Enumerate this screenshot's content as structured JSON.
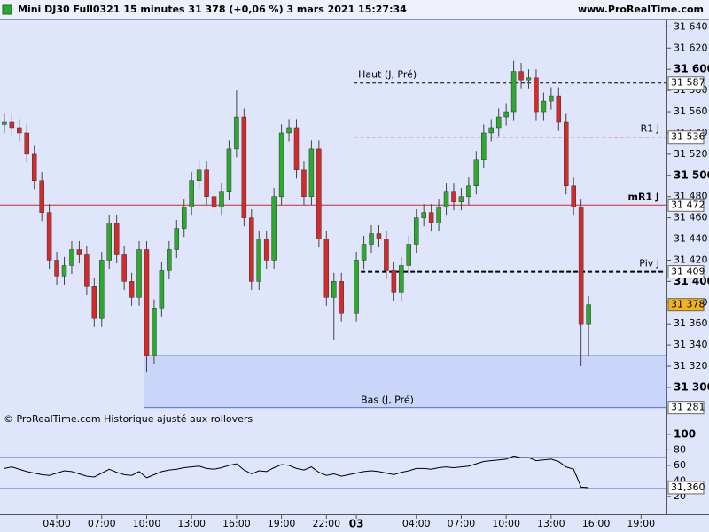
{
  "header": {
    "title": "Mini DJ30 Full0321 15 minutes 31 378 (+0,06 %) 3 mars 2021 15:27:34",
    "site": "www.ProRealTime.com"
  },
  "chart_data": [
    {
      "type": "candlestick",
      "note": "© ProRealTime.com  Historique ajusté aux rollovers",
      "x": [
        0.5,
        1,
        1.5,
        2,
        2.5,
        3,
        3.5,
        4,
        4.5,
        5,
        5.5,
        6,
        6.5,
        7,
        7.5,
        8,
        8.5,
        9,
        9.5,
        10,
        10.5,
        11,
        11.5,
        12,
        12.5,
        13,
        13.5,
        14,
        14.5,
        15,
        15.5,
        16,
        16.5,
        17,
        17.5,
        18,
        18.5,
        19,
        19.5,
        20,
        20.5,
        21,
        21.5,
        22,
        22.5,
        23,
        24,
        24.5,
        25,
        25.5,
        26,
        26.5,
        27,
        27.5,
        28,
        28.5,
        29,
        29.5,
        30,
        30.5,
        31,
        31.5,
        32,
        32.5,
        33,
        33.5,
        34,
        34.5,
        35,
        35.5,
        36,
        36.5,
        37,
        37.5,
        38,
        38.5,
        39,
        39.5
      ],
      "open": [
        31548,
        31550,
        31545,
        31540,
        31520,
        31495,
        31465,
        31420,
        31405,
        31415,
        31430,
        31425,
        31395,
        31365,
        31420,
        31455,
        31425,
        31400,
        31385,
        31430,
        31330,
        31375,
        31410,
        31430,
        31450,
        31470,
        31495,
        31505,
        31480,
        31470,
        31485,
        31525,
        31555,
        31460,
        31400,
        31440,
        31420,
        31480,
        31540,
        31545,
        31505,
        31480,
        31525,
        31440,
        31385,
        31400,
        31370,
        31420,
        31435,
        31445,
        31440,
        31410,
        31390,
        31415,
        31435,
        31460,
        31465,
        31455,
        31470,
        31485,
        31475,
        31480,
        31490,
        31515,
        31540,
        31545,
        31555,
        31560,
        31598,
        31590,
        31592,
        31560,
        31570,
        31575,
        31550,
        31490,
        31470,
        31360
      ],
      "high": [
        31558,
        31558,
        31553,
        31548,
        31528,
        31503,
        31473,
        31428,
        31423,
        31438,
        31438,
        31433,
        31403,
        31428,
        31463,
        31463,
        31433,
        31408,
        31438,
        31438,
        31383,
        31418,
        31438,
        31458,
        31478,
        31503,
        31513,
        31513,
        31488,
        31493,
        31533,
        31580,
        31563,
        31468,
        31448,
        31448,
        31488,
        31548,
        31553,
        31553,
        31513,
        31533,
        31533,
        31448,
        31408,
        31408,
        31428,
        31443,
        31453,
        31453,
        31448,
        31418,
        31423,
        31443,
        31468,
        31473,
        31473,
        31478,
        31493,
        31493,
        31488,
        31498,
        31523,
        31548,
        31553,
        31563,
        31568,
        31608,
        31606,
        31600,
        31600,
        31578,
        31583,
        31583,
        31558,
        31498,
        31478,
        31386
      ],
      "low": [
        31540,
        31537,
        31532,
        31512,
        31487,
        31457,
        31412,
        31397,
        31397,
        31407,
        31417,
        31387,
        31357,
        31357,
        31412,
        31417,
        31392,
        31377,
        31377,
        31314,
        31322,
        31367,
        31402,
        31422,
        31442,
        31462,
        31487,
        31472,
        31462,
        31462,
        31477,
        31517,
        31452,
        31392,
        31392,
        31412,
        31412,
        31472,
        31532,
        31497,
        31472,
        31472,
        31432,
        31377,
        31345,
        31362,
        31362,
        31412,
        31427,
        31432,
        31402,
        31382,
        31382,
        31407,
        31427,
        31452,
        31447,
        31447,
        31462,
        31467,
        31467,
        31472,
        31482,
        31507,
        31532,
        31537,
        31547,
        31552,
        31582,
        31582,
        31552,
        31552,
        31562,
        31542,
        31482,
        31462,
        31320,
        31330
      ],
      "close": [
        31550,
        31545,
        31540,
        31520,
        31495,
        31465,
        31420,
        31405,
        31415,
        31430,
        31425,
        31395,
        31365,
        31420,
        31455,
        31425,
        31400,
        31385,
        31430,
        31330,
        31375,
        31410,
        31430,
        31450,
        31470,
        31495,
        31505,
        31480,
        31470,
        31485,
        31525,
        31555,
        31460,
        31400,
        31440,
        31420,
        31480,
        31540,
        31545,
        31505,
        31480,
        31525,
        31440,
        31385,
        31400,
        31370,
        31420,
        31435,
        31445,
        31440,
        31410,
        31390,
        31415,
        31435,
        31460,
        31465,
        31455,
        31470,
        31485,
        31475,
        31480,
        31490,
        31515,
        31540,
        31545,
        31555,
        31560,
        31598,
        31590,
        31592,
        31560,
        31570,
        31575,
        31550,
        31490,
        31470,
        31360,
        31378
      ],
      "up_color": "#2ea82e",
      "down_color": "#d42a2a",
      "xlim": [
        0.21,
        44.7
      ],
      "ylim": [
        31264,
        31647
      ],
      "yticks": [
        {
          "value": 31300,
          "label": "31 300"
        },
        {
          "value": 31320,
          "label": "31 320"
        },
        {
          "value": 31340,
          "label": "31 340"
        },
        {
          "value": 31360,
          "label": "31 360"
        },
        {
          "value": 31380,
          "label": "31 380"
        },
        {
          "value": 31400,
          "label": "31 400"
        },
        {
          "value": 31420,
          "label": "31 420"
        },
        {
          "value": 31440,
          "label": "31 440"
        },
        {
          "value": 31460,
          "label": "31 460"
        },
        {
          "value": 31480,
          "label": "31 480"
        },
        {
          "value": 31500,
          "label": "31 500"
        },
        {
          "value": 31520,
          "label": "31 520"
        },
        {
          "value": 31540,
          "label": "31 540"
        },
        {
          "value": 31560,
          "label": "31 560"
        },
        {
          "value": 31580,
          "label": "31 580"
        },
        {
          "value": 31600,
          "label": "31 600"
        },
        {
          "value": 31620,
          "label": "31 620"
        },
        {
          "value": 31640,
          "label": "31 640"
        }
      ],
      "xticks": [
        {
          "value": 4,
          "label": "04:00"
        },
        {
          "value": 7,
          "label": "07:00"
        },
        {
          "value": 10,
          "label": "10:00"
        },
        {
          "value": 13,
          "label": "13:00"
        },
        {
          "value": 16,
          "label": "16:00"
        },
        {
          "value": 19,
          "label": "19:00"
        },
        {
          "value": 22,
          "label": "22:00"
        },
        {
          "value": 24,
          "label": "03"
        },
        {
          "value": 28,
          "label": "04:00"
        },
        {
          "value": 31,
          "label": "07:00"
        },
        {
          "value": 34,
          "label": "10:00"
        },
        {
          "value": 37,
          "label": "13:00"
        },
        {
          "value": 40,
          "label": "16:00"
        },
        {
          "value": 43,
          "label": "19:00"
        }
      ],
      "levels": [
        {
          "name": "Haut (J, Pré)",
          "value": 31587,
          "label": "31 587",
          "color": "#000000",
          "style": "dashed",
          "scope": "day",
          "label_side": "left"
        },
        {
          "name": "R1 J",
          "value": 31536,
          "label": "31 536",
          "color": "#d42a2a",
          "style": "dashed",
          "scope": "day",
          "label_side": "right"
        },
        {
          "name": "mR1 J",
          "value": 31472,
          "label": "31 472",
          "color": "#d42a2a",
          "style": "solid",
          "scope": "all",
          "label_side": "right"
        },
        {
          "name": "Piv J",
          "value": 31409,
          "label": "31 409",
          "color": "#000000",
          "style": "bold-dashed",
          "scope": "day",
          "label_side": "right"
        },
        {
          "name": "Bas (J, Pré)",
          "value": 31281,
          "label": "31 281",
          "color": "#4a6fd8",
          "style": "zone",
          "zone_top": 31330,
          "scope": "zone",
          "label_side": "left"
        }
      ],
      "last": {
        "value": 31378,
        "label": "31 378",
        "color": "#f2b418"
      }
    },
    {
      "type": "line",
      "x": [
        0.5,
        1,
        1.5,
        2,
        2.5,
        3,
        3.5,
        4,
        4.5,
        5,
        5.5,
        6,
        6.5,
        7,
        7.5,
        8,
        8.5,
        9,
        9.5,
        10,
        10.5,
        11,
        11.5,
        12,
        12.5,
        13,
        13.5,
        14,
        14.5,
        15,
        15.5,
        16,
        16.5,
        17,
        17.5,
        18,
        18.5,
        19,
        19.5,
        20,
        20.5,
        21,
        21.5,
        22,
        22.5,
        23,
        24,
        24.5,
        25,
        25.5,
        26,
        26.5,
        27,
        27.5,
        28,
        28.5,
        29,
        29.5,
        30,
        30.5,
        31,
        31.5,
        32,
        32.5,
        33,
        33.5,
        34,
        34.5,
        35,
        35.5,
        36,
        36.5,
        37,
        37.5,
        38,
        38.5,
        39,
        39.5
      ],
      "values": [
        56,
        58,
        55,
        52,
        50,
        48,
        47,
        50,
        53,
        52,
        49,
        46,
        45,
        50,
        55,
        51,
        48,
        47,
        52,
        44,
        48,
        52,
        54,
        55,
        57,
        58,
        59,
        56,
        55,
        57,
        60,
        62,
        54,
        49,
        53,
        52,
        57,
        61,
        60,
        56,
        54,
        58,
        51,
        47,
        49,
        46,
        50,
        52,
        53,
        52,
        50,
        48,
        51,
        53,
        56,
        56,
        55,
        57,
        58,
        57,
        58,
        59,
        62,
        65,
        66,
        67,
        68,
        72,
        70,
        70,
        66,
        67,
        68,
        65,
        58,
        55,
        32,
        31.36
      ],
      "color": "#000000",
      "xlim": [
        0.21,
        44.7
      ],
      "ylim": [
        -3,
        109
      ],
      "yticks": [
        20,
        40,
        60,
        80,
        100
      ],
      "levels": [
        {
          "value": 70,
          "color": "#2b2b9a"
        },
        {
          "value": 30,
          "color": "#2b2b9a"
        }
      ],
      "last": {
        "value": 31.36,
        "label": "31,360"
      }
    }
  ]
}
